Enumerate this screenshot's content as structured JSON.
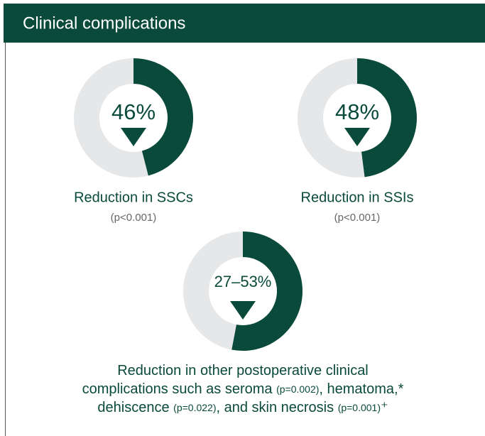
{
  "header": {
    "title": "Clinical complications"
  },
  "stats": [
    {
      "value": 46,
      "label": "46%",
      "caption": "Reduction in SSCs",
      "note": "(p<0.001)"
    },
    {
      "value": 48,
      "label": "48%",
      "caption": "Reduction in SSIs",
      "note": "(p<0.001)"
    },
    {
      "value": 53,
      "label": "27–53%",
      "caption_lines": [
        [
          {
            "text": "Reduction in other postoperative clinical",
            "small": false
          }
        ],
        [
          {
            "text": "complications such as seroma ",
            "small": false
          },
          {
            "text": "(p=0.002)",
            "small": true
          },
          {
            "text": ", hematoma,*",
            "small": false
          }
        ],
        [
          {
            "text": "dehiscence ",
            "small": false
          },
          {
            "text": "(p=0.022)",
            "small": true
          },
          {
            "text": ", and skin necrosis ",
            "small": false
          },
          {
            "text": "(p=0.001)",
            "small": true
          },
          {
            "text": "⁺",
            "small": false
          }
        ]
      ]
    }
  ],
  "colors": {
    "fill": "#0a4a3b",
    "track": "#e6e7e8"
  }
}
